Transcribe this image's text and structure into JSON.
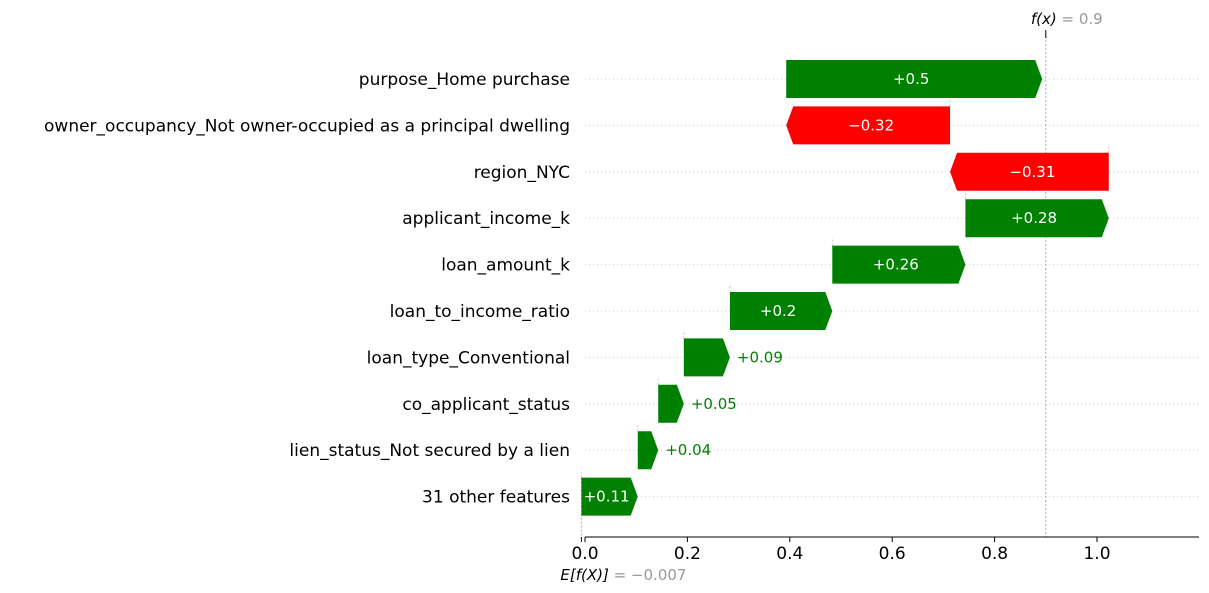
{
  "chart_data": {
    "type": "waterfall",
    "base_value": -0.007,
    "final_value": 0.9,
    "base_label": "E[f(X)] = −0.007",
    "base_label_expr": "E[f(X)]",
    "base_label_value": "= −0.007",
    "final_label_expr": "f(x)",
    "final_label_value": "= 0.9",
    "features": [
      {
        "name": "purpose_Home purchase",
        "value": 0.5,
        "label": "+0.5"
      },
      {
        "name": "owner_occupancy_Not owner-occupied as a principal dwelling",
        "value": -0.32,
        "label": "−0.32"
      },
      {
        "name": "region_NYC",
        "value": -0.31,
        "label": "−0.31"
      },
      {
        "name": "applicant_income_k",
        "value": 0.28,
        "label": "+0.28"
      },
      {
        "name": "loan_amount_k",
        "value": 0.26,
        "label": "+0.26"
      },
      {
        "name": "loan_to_income_ratio",
        "value": 0.2,
        "label": "+0.2"
      },
      {
        "name": "loan_type_Conventional",
        "value": 0.09,
        "label": "+0.09"
      },
      {
        "name": "co_applicant_status",
        "value": 0.05,
        "label": "+0.05"
      },
      {
        "name": "lien_status_Not secured by a lien",
        "value": 0.04,
        "label": "+0.04"
      },
      {
        "name": "31 other features",
        "value": 0.11,
        "label": "+0.11"
      }
    ],
    "xticks": [
      "0.0",
      "0.2",
      "0.4",
      "0.6",
      "0.8",
      "1.0"
    ],
    "xlim": [
      -0.005,
      1.2
    ],
    "colors": {
      "positive": "#008000",
      "negative": "#ff0000",
      "grid": "#cccccc",
      "annotation": "#999999"
    }
  }
}
